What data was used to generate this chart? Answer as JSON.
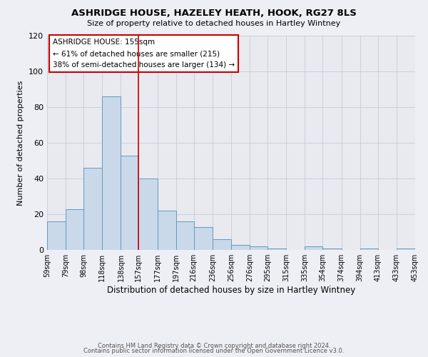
{
  "title": "ASHRIDGE HOUSE, HAZELEY HEATH, HOOK, RG27 8LS",
  "subtitle": "Size of property relative to detached houses in Hartley Wintney",
  "xlabel": "Distribution of detached houses by size in Hartley Wintney",
  "ylabel": "Number of detached properties",
  "bar_values": [
    16,
    23,
    46,
    86,
    53,
    40,
    22,
    16,
    13,
    6,
    3,
    2,
    1,
    0,
    2,
    1,
    0,
    1,
    0,
    1
  ],
  "bar_edges": [
    59,
    79,
    98,
    118,
    138,
    157,
    177,
    197,
    216,
    236,
    256,
    276,
    295,
    315,
    335,
    354,
    374,
    394,
    413,
    433,
    453
  ],
  "tick_labels": [
    "59sqm",
    "79sqm",
    "98sqm",
    "118sqm",
    "138sqm",
    "157sqm",
    "177sqm",
    "197sqm",
    "216sqm",
    "236sqm",
    "256sqm",
    "276sqm",
    "295sqm",
    "315sqm",
    "335sqm",
    "354sqm",
    "374sqm",
    "394sqm",
    "413sqm",
    "433sqm",
    "453sqm"
  ],
  "bar_color": "#c9d9ea",
  "bar_edge_color": "#6699bb",
  "vline_x": 157,
  "vline_color": "#cc0000",
  "ylim": [
    0,
    120
  ],
  "yticks": [
    0,
    20,
    40,
    60,
    80,
    100,
    120
  ],
  "annotation_title": "ASHRIDGE HOUSE: 155sqm",
  "annotation_line1": "← 61% of detached houses are smaller (215)",
  "annotation_line2": "38% of semi-detached houses are larger (134) →",
  "footer1": "Contains HM Land Registry data © Crown copyright and database right 2024.",
  "footer2": "Contains public sector information licensed under the Open Government Licence v3.0.",
  "background_color": "#eeeef5",
  "plot_bg_color": "#e8eaf0"
}
